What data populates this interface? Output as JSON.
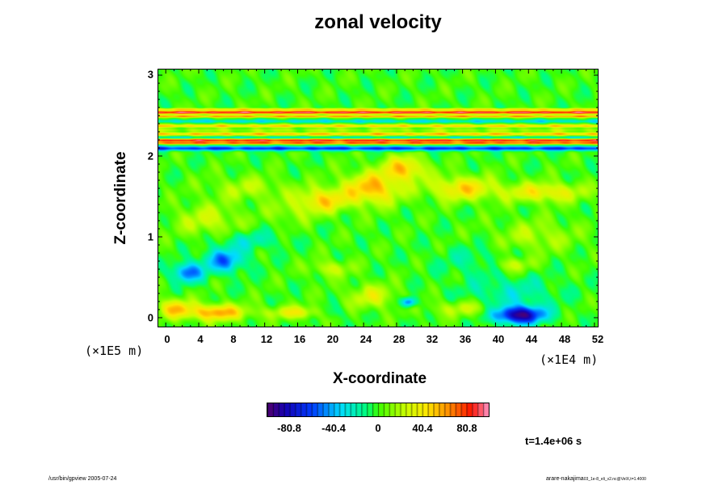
{
  "chart_data": {
    "type": "heatmap",
    "title": "zonal velocity",
    "xlabel": "X-coordinate",
    "ylabel": "Z-coordinate",
    "x_scale": "(×1E4 m)",
    "y_scale": "(×1E5 m)",
    "x_ticks": [
      "0",
      "4",
      "8",
      "12",
      "16",
      "20",
      "24",
      "28",
      "32",
      "36",
      "40",
      "44",
      "48",
      "52"
    ],
    "y_ticks": [
      "0",
      "1",
      "2",
      "3"
    ],
    "xlim": [
      -1,
      52.5
    ],
    "ylim": [
      -0.12,
      3.08
    ],
    "colorbar": {
      "ticks": [
        "-80.8",
        "-40.4",
        "0",
        "40.4",
        "80.8"
      ],
      "tick_values": [
        -80.8,
        -40.4,
        0,
        40.4,
        80.8
      ],
      "range": [
        -101,
        101
      ],
      "colormap": "rainbow (purple-blue-cyan-green-yellow-red-pink)"
    },
    "background_value": 0,
    "features": [
      {
        "x": 43,
        "z": 0.02,
        "sx": 3.0,
        "sz": 0.11,
        "v": -95
      },
      {
        "x": 42,
        "z": 0.3,
        "sx": 6,
        "sz": 0.2,
        "v": -20
      },
      {
        "x": 6,
        "z": 0.05,
        "sx": 3.5,
        "sz": 0.1,
        "v": 60
      },
      {
        "x": 1,
        "z": 0.1,
        "sx": 2,
        "sz": 0.12,
        "v": 45
      },
      {
        "x": 16,
        "z": 0.05,
        "sx": 4,
        "sz": 0.08,
        "v": 35
      },
      {
        "x": 25,
        "z": 0.25,
        "sx": 3,
        "sz": 0.15,
        "v": 30
      },
      {
        "x": 36,
        "z": 0.1,
        "sx": 4,
        "sz": 0.1,
        "v": 25
      },
      {
        "x": 29.5,
        "z": 0.18,
        "sx": 0.9,
        "sz": 0.06,
        "v": -60
      },
      {
        "x": 20,
        "z": 0.05,
        "sx": 2,
        "sz": 0.08,
        "v": -20
      },
      {
        "x": 7,
        "z": 0.7,
        "sx": 2.5,
        "sz": 0.15,
        "v": -50
      },
      {
        "x": 2.5,
        "z": 0.55,
        "sx": 1.8,
        "sz": 0.12,
        "v": -55
      },
      {
        "x": 10,
        "z": 0.95,
        "sx": 4,
        "sz": 0.12,
        "v": -20
      },
      {
        "x": 38,
        "z": 0.7,
        "sx": 5,
        "sz": 0.18,
        "v": -15
      },
      {
        "x": 42,
        "z": 0.65,
        "sx": 2.5,
        "sz": 0.1,
        "v": 30
      },
      {
        "x": 20,
        "z": 0.6,
        "sx": 2.5,
        "sz": 0.1,
        "v": 25
      },
      {
        "x": 25,
        "z": 1.6,
        "sx": 3.5,
        "sz": 0.2,
        "v": 55
      },
      {
        "x": 19,
        "z": 1.45,
        "sx": 3,
        "sz": 0.15,
        "v": 45
      },
      {
        "x": 29,
        "z": 1.85,
        "sx": 2.5,
        "sz": 0.15,
        "v": 50
      },
      {
        "x": 36,
        "z": 1.6,
        "sx": 4,
        "sz": 0.15,
        "v": 45
      },
      {
        "x": 46,
        "z": 1.55,
        "sx": 5,
        "sz": 0.12,
        "v": 40
      },
      {
        "x": 10,
        "z": 1.6,
        "sx": 5,
        "sz": 0.15,
        "v": 20
      },
      {
        "x": 5,
        "z": 1.2,
        "sx": 4,
        "sz": 0.2,
        "v": 25
      },
      {
        "x": 15,
        "z": 1.3,
        "sx": 3,
        "sz": 0.15,
        "v": 15
      },
      {
        "x": 45,
        "z": 1.0,
        "sx": 5,
        "sz": 0.2,
        "v": 20
      }
    ],
    "bands": [
      {
        "z": 2.1,
        "w": 0.028,
        "v": -62
      },
      {
        "z": 2.165,
        "w": 0.014,
        "v": 70
      },
      {
        "z": 2.2,
        "w": 0.022,
        "v": 86
      },
      {
        "z": 2.235,
        "w": 0.016,
        "v": -30
      },
      {
        "z": 2.28,
        "w": 0.022,
        "v": 52
      },
      {
        "z": 2.33,
        "w": 0.015,
        "v": 18
      },
      {
        "z": 2.38,
        "w": 0.02,
        "v": 48
      },
      {
        "z": 2.44,
        "w": 0.02,
        "v": -28
      },
      {
        "z": 2.5,
        "w": 0.014,
        "v": 62
      },
      {
        "z": 2.55,
        "w": 0.022,
        "v": 90
      },
      {
        "z": 2.59,
        "w": 0.012,
        "v": 42
      }
    ]
  },
  "time_label": "t=1.4e+06 s",
  "footer": {
    "left": "/usr/bin/gpview 2005-07-24",
    "right": "arare-nakajima",
    "right_small": "03_1e-8_eli_v2.nc@VelX,t=1.4000"
  }
}
